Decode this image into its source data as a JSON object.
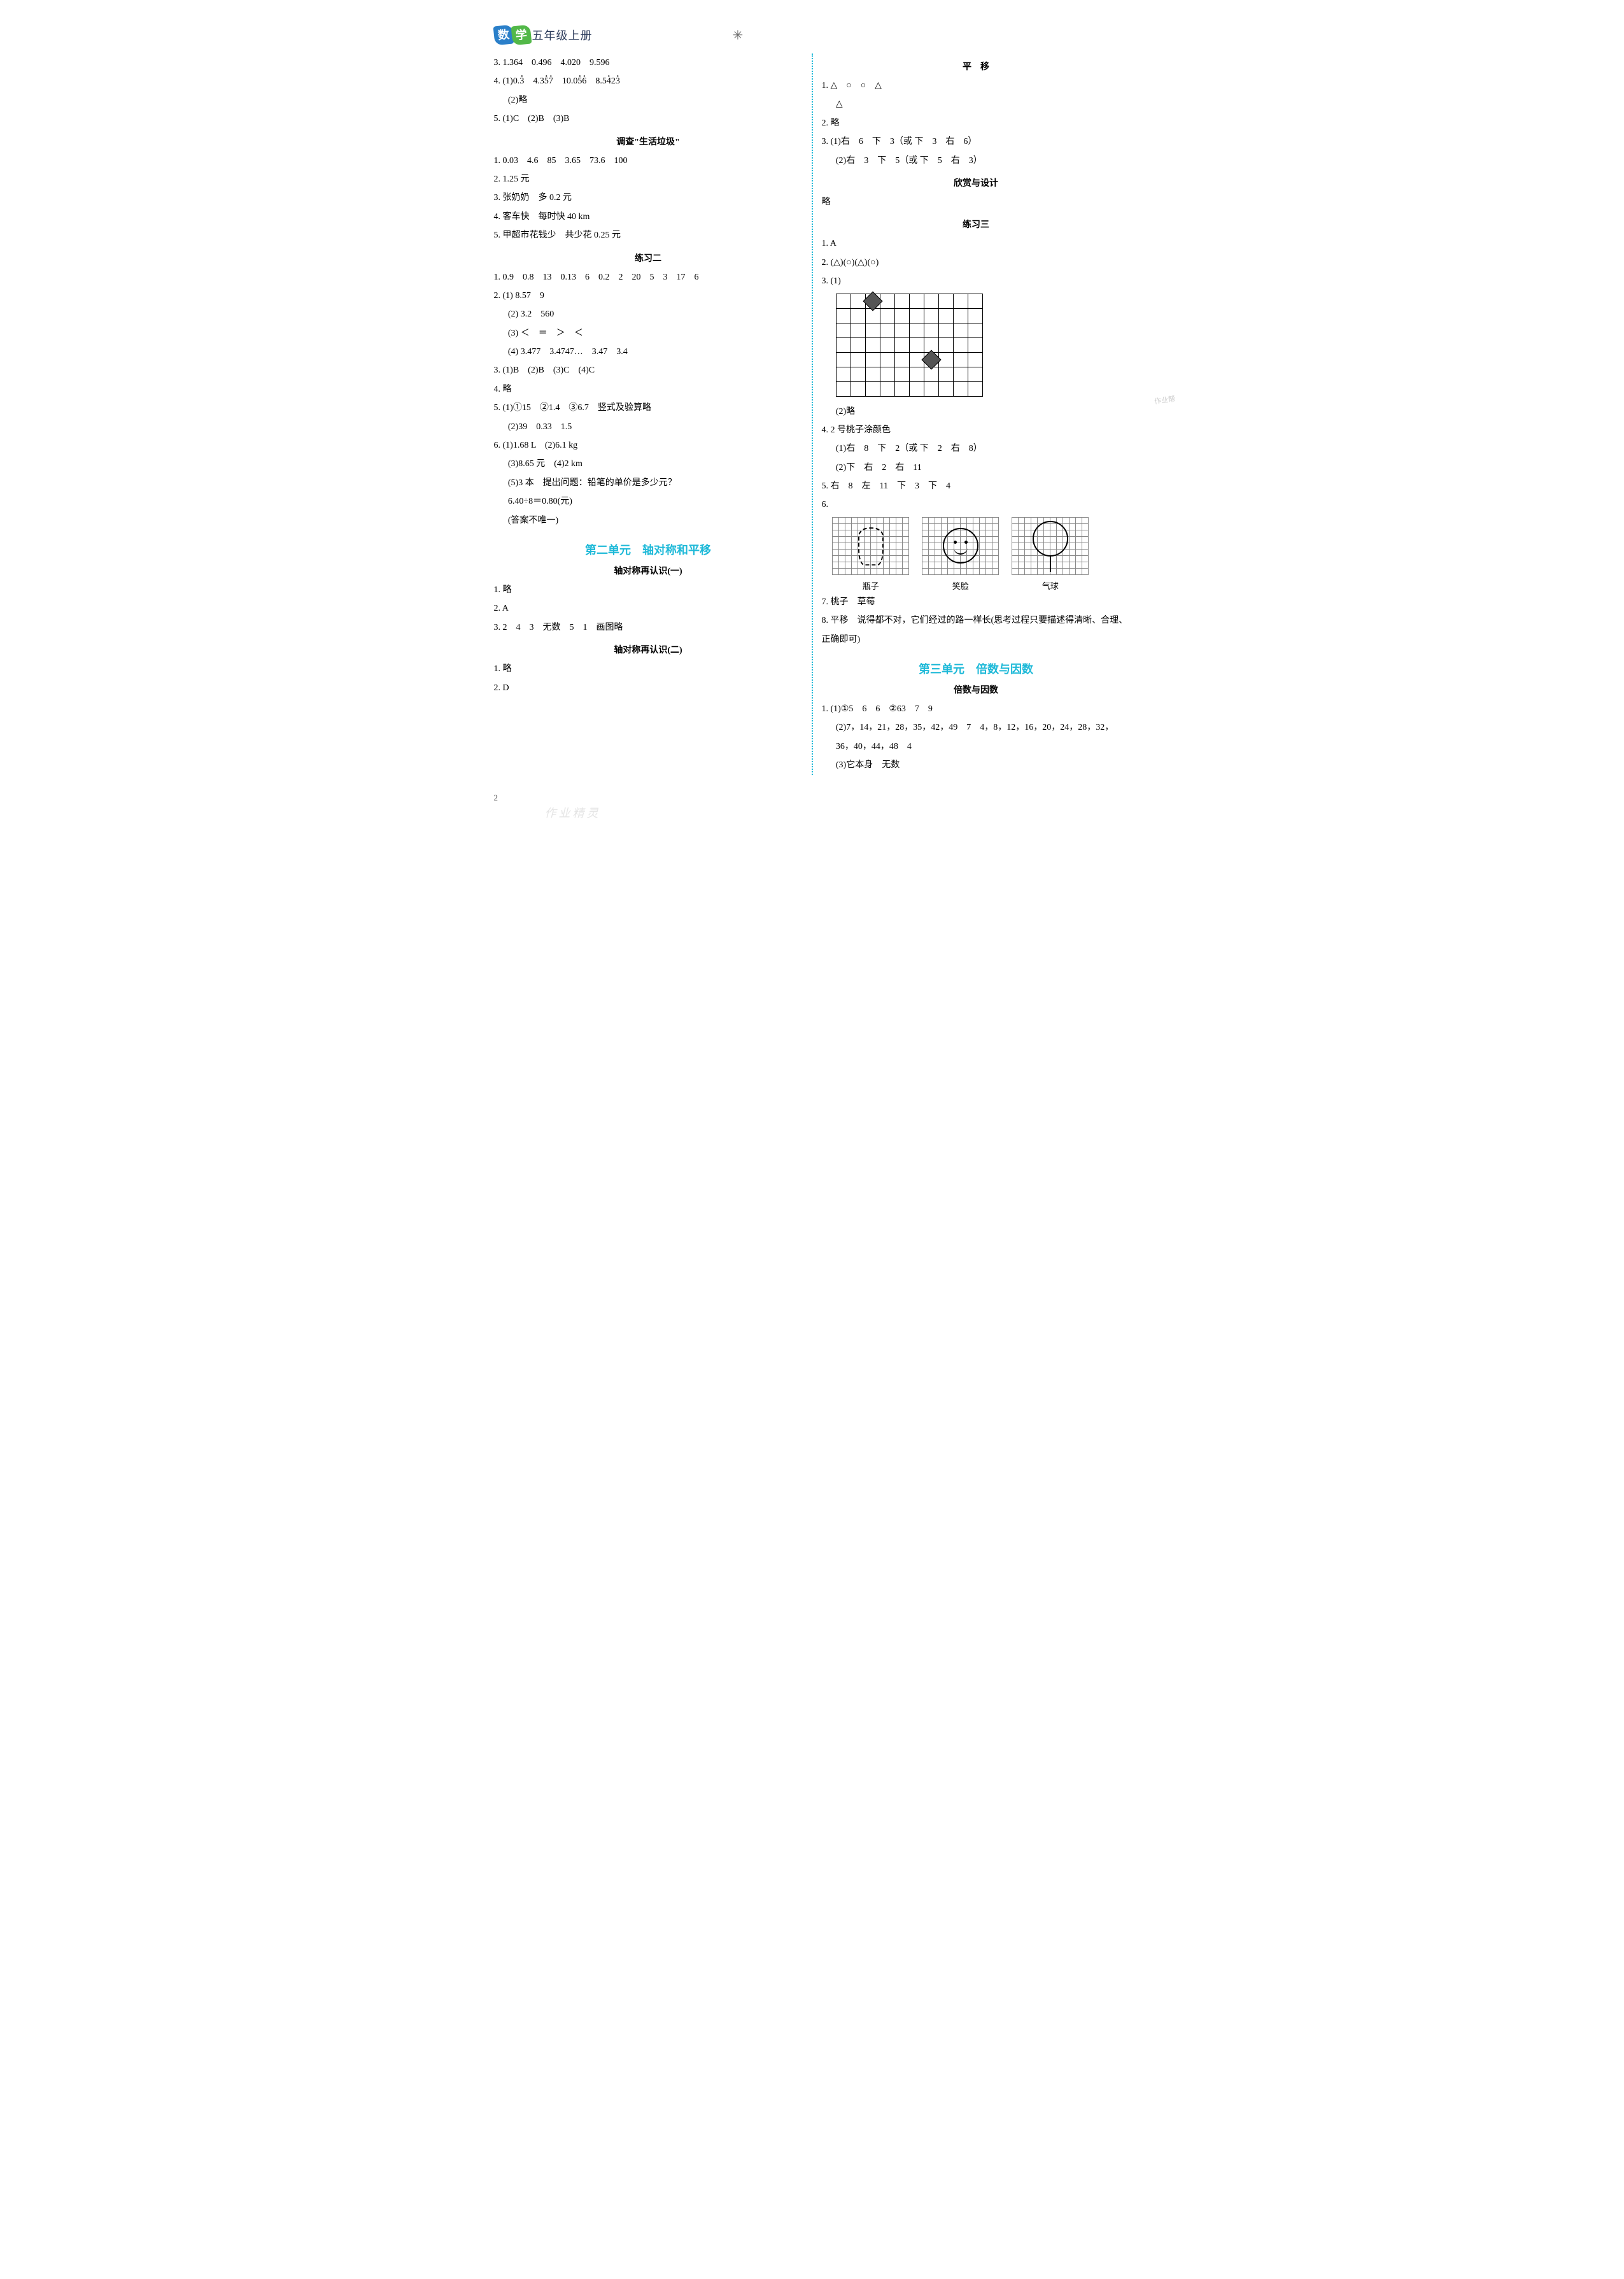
{
  "header": {
    "char1": "数",
    "char2": "学",
    "title": "五年级上册"
  },
  "page_number": "2",
  "left": {
    "l3": "3. 1.364　0.496　4.020　9.596",
    "l4a_prefix": "4. (1)0.",
    "l4a_d1": "3",
    "l4a_sp1": "　4.3",
    "l4a_d2": "5",
    "l4a_d3": "7",
    "l4a_sp2": "　10.0",
    "l4a_d4": "5",
    "l4a_d5": "6",
    "l4a_sp3": "　8.5",
    "l4a_d6": "4",
    "l4a_d7": "2",
    "l4a_d8": "3",
    "l4b": "(2)略",
    "l5": "5. (1)C　(2)B　(3)B",
    "sec_garbage": "调查\"生活垃圾\"",
    "g1": "1. 0.03　4.6　85　3.65　73.6　100",
    "g2": "2. 1.25 元",
    "g3": "3. 张奶奶　多 0.2 元",
    "g4": "4. 客车快　每时快 40 km",
    "g5": "5. 甲超市花钱少　共少花 0.25 元",
    "sec_ex2": "练习二",
    "e2_1": "1. 0.9　0.8　13　0.13　6　0.2　2　20　5　3　17　6",
    "e2_2a": "2. (1) 8.57　9",
    "e2_2b": "(2) 3.2　560",
    "e2_2c": "(3) ＜　＝　＞　＜",
    "e2_2d": "(4) 3.477　3.4747…　3.47　3.4",
    "e2_3": "3. (1)B　(2)B　(3)C　(4)C",
    "e2_4": "4. 略",
    "e2_5a": "5. (1)①15　②1.4　③6.7　竖式及验算略",
    "e2_5b": "(2)39　0.33　1.5",
    "e2_6a": "6. (1)1.68 L　(2)6.1 kg",
    "e2_6b": "(3)8.65 元　(4)2 km",
    "e2_6c": "(5)3 本　提出问题：铅笔的单价是多少元？",
    "e2_6d": "6.40÷8＝0.80(元)",
    "e2_6e": "(答案不唯一)",
    "unit2": "第二单元　轴对称和平移",
    "sec_ax1": "轴对称再认识(一)",
    "ax1_1": "1. 略",
    "ax1_2": "2. A",
    "ax1_3": "3. 2　4　3　无数　5　1　画图略",
    "sec_ax2": "轴对称再认识(二)",
    "ax2_1": "1. 略",
    "ax2_2": "2. D"
  },
  "right": {
    "sec_trans": "平　移",
    "t1a": "1. △　○　○　△",
    "t1b": "△",
    "t2": "2. 略",
    "t3a": "3. (1)右　6　下　3（或 下　3　右　6）",
    "t3b": "(2)右　3　下　5（或 下　5　右　3）",
    "sec_design": "欣赏与设计",
    "d1": "略",
    "sec_ex3": "练习三",
    "e3_1": "1. A",
    "e3_2": "2. (△)(○)(△)(○)",
    "e3_3a": "3. (1)",
    "grid": {
      "cols": 10,
      "rows": 7,
      "cell": 22,
      "d1": {
        "c": 2,
        "r": 0
      },
      "d2": {
        "c": 6,
        "r": 4
      }
    },
    "e3_3b": "(2)略",
    "e3_4a": "4. 2 号桃子涂颜色",
    "e3_4b": "(1)右　8　下　2（或 下　2　右　8）",
    "e3_4c": "(2)下　右　2　右　11",
    "e3_5": "5. 右　8　左　11　下　3　下　4",
    "e3_6": "6.",
    "mini_labels": {
      "a": "瓶子",
      "b": "笑脸",
      "c": "气球"
    },
    "e3_7": "7. 桃子　草莓",
    "e3_8": "8. 平移　说得都不对，它们经过的路一样长(思考过程只要描述得清晰、合理、正确即可)",
    "unit3": "第三单元　倍数与因数",
    "sec_bf": "倍数与因数",
    "bf1a": "1. (1)①5　6　6　②63　7　9",
    "bf1b": "(2)7，14，21，28，35，42，49　7　4，8，12，16，20，24，28，32，36，40，44，48　4",
    "bf1c": "(3)它本身　无数"
  },
  "watermark": "作业帮",
  "watermark2": "作业精灵"
}
